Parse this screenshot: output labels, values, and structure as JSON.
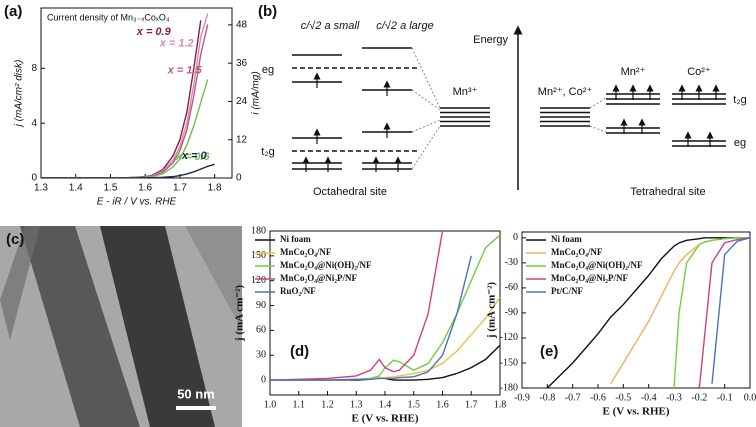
{
  "chart_data": [
    {
      "type": "line",
      "panel_label": "(a)",
      "annotation": "Current density of Mn₃₋ₓCoₓO₄",
      "xlabel": "E - iR / V vs. RHE",
      "ylabel": "j (mA/cm² disk)",
      "y2label": "i (mA/mg)",
      "x": [
        1.3,
        1.4,
        1.5,
        1.55,
        1.6,
        1.62,
        1.65,
        1.68,
        1.7,
        1.72,
        1.74,
        1.76,
        1.78,
        1.8
      ],
      "xlim": [
        1.3,
        1.85
      ],
      "xticks": [
        1.3,
        1.4,
        1.5,
        1.6,
        1.7,
        1.8
      ],
      "ylim": [
        0,
        12.4
      ],
      "yticks": [
        0,
        4,
        8
      ],
      "y2lim": [
        0,
        53.3
      ],
      "y2ticks": [
        0,
        12,
        24,
        36,
        48
      ],
      "series": [
        {
          "name": "x = 0.9",
          "color": "#8a1c4c",
          "values": [
            0,
            0,
            0,
            0.02,
            0.1,
            0.2,
            0.6,
            1.6,
            2.8,
            4.8,
            8,
            11.5,
            null,
            null
          ]
        },
        {
          "name": "x = 1.2",
          "color": "#d98aa9",
          "values": [
            0,
            0,
            0,
            0.02,
            0.08,
            0.15,
            0.5,
            1.3,
            2.3,
            4,
            6.8,
            10.3,
            12,
            null
          ]
        },
        {
          "name": "x = 1.5",
          "color": "#b05f80",
          "values": [
            0,
            0,
            0,
            0.02,
            0.07,
            0.13,
            0.4,
            1.1,
            2,
            3.5,
            6,
            9,
            11.2,
            null
          ]
        },
        {
          "name": "x = 0.6",
          "color": "#6cc24a",
          "values": [
            0,
            0,
            0,
            0.01,
            0.05,
            0.1,
            0.3,
            0.8,
            1.4,
            2.4,
            3.8,
            5.5,
            7.2,
            null
          ]
        },
        {
          "name": "x = 0",
          "color": "#1c2a4c",
          "values": [
            0,
            0,
            0,
            0,
            0.01,
            0.02,
            0.05,
            0.1,
            0.18,
            0.3,
            0.45,
            0.65,
            0.85,
            1.0
          ]
        }
      ]
    },
    {
      "type": "line",
      "panel_label": "(d)",
      "xlabel": "E (V vs. RHE)",
      "ylabel": "j (mA cm⁻²)",
      "legend": "upper left",
      "x": [
        1.0,
        1.1,
        1.2,
        1.3,
        1.35,
        1.38,
        1.4,
        1.43,
        1.45,
        1.5,
        1.55,
        1.6,
        1.65,
        1.7,
        1.75,
        1.8
      ],
      "xlim": [
        1.0,
        1.8
      ],
      "xticks": [
        {
          "value": 1,
          "label": "1.0"
        },
        1.1,
        1.2,
        1.3,
        1.4,
        1.5,
        1.6,
        1.7,
        1.8
      ],
      "ylim": [
        -18,
        180
      ],
      "yticks": [
        0,
        30,
        60,
        90,
        120,
        150,
        180
      ],
      "series": [
        {
          "name": "Ni foam",
          "color": "#111111",
          "values": [
            0,
            0,
            0,
            0,
            1,
            3,
            2,
            0,
            0,
            0,
            1,
            3,
            8,
            15,
            25,
            42
          ]
        },
        {
          "name": "MnCo₂O₄/NF",
          "color": "#f0c040",
          "values": [
            0,
            0,
            0,
            1,
            2,
            3,
            3,
            4,
            5,
            8,
            12,
            20,
            35,
            55,
            75,
            100
          ]
        },
        {
          "name": "MnCo₂O₄@Ni(OH)₂/NF",
          "color": "#6fd040",
          "values": [
            0,
            0,
            0,
            1,
            2,
            5,
            15,
            24,
            22,
            12,
            20,
            45,
            80,
            120,
            160,
            175
          ]
        },
        {
          "name": "MnCo₂O₄@Ni₂P/NF",
          "color": "#d0407f",
          "values": [
            0,
            1,
            2,
            5,
            12,
            25,
            15,
            10,
            12,
            30,
            80,
            180,
            null,
            null,
            null,
            null
          ]
        },
        {
          "name": "RuO₂/NF",
          "color": "#5070c0",
          "values": [
            0,
            0,
            0,
            1,
            1,
            2,
            2,
            2,
            3,
            4,
            10,
            30,
            80,
            150,
            null,
            null
          ]
        }
      ]
    },
    {
      "type": "line",
      "panel_label": "(e)",
      "xlabel": "E (V vs. RHE)",
      "ylabel": "j (mA cm⁻²)",
      "legend": "upper left",
      "x": [
        -0.9,
        -0.8,
        -0.7,
        -0.6,
        -0.55,
        -0.5,
        -0.4,
        -0.35,
        -0.3,
        -0.28,
        -0.25,
        -0.2,
        -0.18,
        -0.15,
        -0.1,
        -0.05,
        0.0
      ],
      "xlim": [
        -0.9,
        0.0
      ],
      "xticks": [
        -0.9,
        -0.8,
        -0.7,
        -0.6,
        -0.5,
        -0.4,
        -0.3,
        -0.2,
        -0.1,
        {
          "value": 0,
          "label": "0.0"
        }
      ],
      "ylim": [
        -180,
        7
      ],
      "yticks": [
        0,
        -30,
        -60,
        -90,
        -120,
        -150,
        -180
      ],
      "series": [
        {
          "name": "Ni foam",
          "color": "#111111",
          "values": [
            null,
            -180,
            -150,
            -115,
            -95,
            -80,
            -45,
            -25,
            -10,
            -6,
            -3,
            -1,
            0,
            0,
            0,
            0,
            0
          ]
        },
        {
          "name": "MnCo₂O₄/NF",
          "color": "#f0b060",
          "values": [
            null,
            null,
            null,
            null,
            -175,
            -150,
            -100,
            -70,
            -40,
            -30,
            -20,
            -8,
            -5,
            -3,
            -1,
            0,
            0
          ]
        },
        {
          "name": "MnCo₂O₄@Ni(OH)₂/NF",
          "color": "#6fd040",
          "values": [
            null,
            null,
            null,
            null,
            null,
            null,
            null,
            null,
            -180,
            -90,
            -30,
            -8,
            -5,
            -3,
            -1,
            0,
            0
          ]
        },
        {
          "name": "MnCo₂O₄@Ni₂P/NF",
          "color": "#d0407f",
          "values": [
            null,
            null,
            null,
            null,
            null,
            null,
            null,
            null,
            null,
            null,
            null,
            -180,
            -120,
            -30,
            -6,
            -2,
            0
          ]
        },
        {
          "name": "Pt/C/NF",
          "color": "#5070c0",
          "values": [
            null,
            null,
            null,
            null,
            null,
            null,
            null,
            null,
            null,
            null,
            null,
            null,
            null,
            -175,
            -20,
            -4,
            0
          ]
        }
      ]
    }
  ],
  "diagram": {
    "panel_label": "(b)",
    "col_small": "c/√2 a small",
    "col_large": "c/√2 a large",
    "energy": "Energy",
    "eg_left": "eg",
    "t2g_left": "t₂g",
    "mn3": "Mn³⁺",
    "mn2co2": "Mn²⁺, Co²⁺",
    "mn2": "Mn²⁺",
    "co2": "Co²⁺",
    "t2g_right": "t₂g",
    "eg_right": "eg",
    "octahedral": "Octahedral site",
    "tetrahedral": "Tetrahedral site"
  },
  "image": {
    "panel_label": "(c)",
    "scale_bar": "50 nm"
  }
}
